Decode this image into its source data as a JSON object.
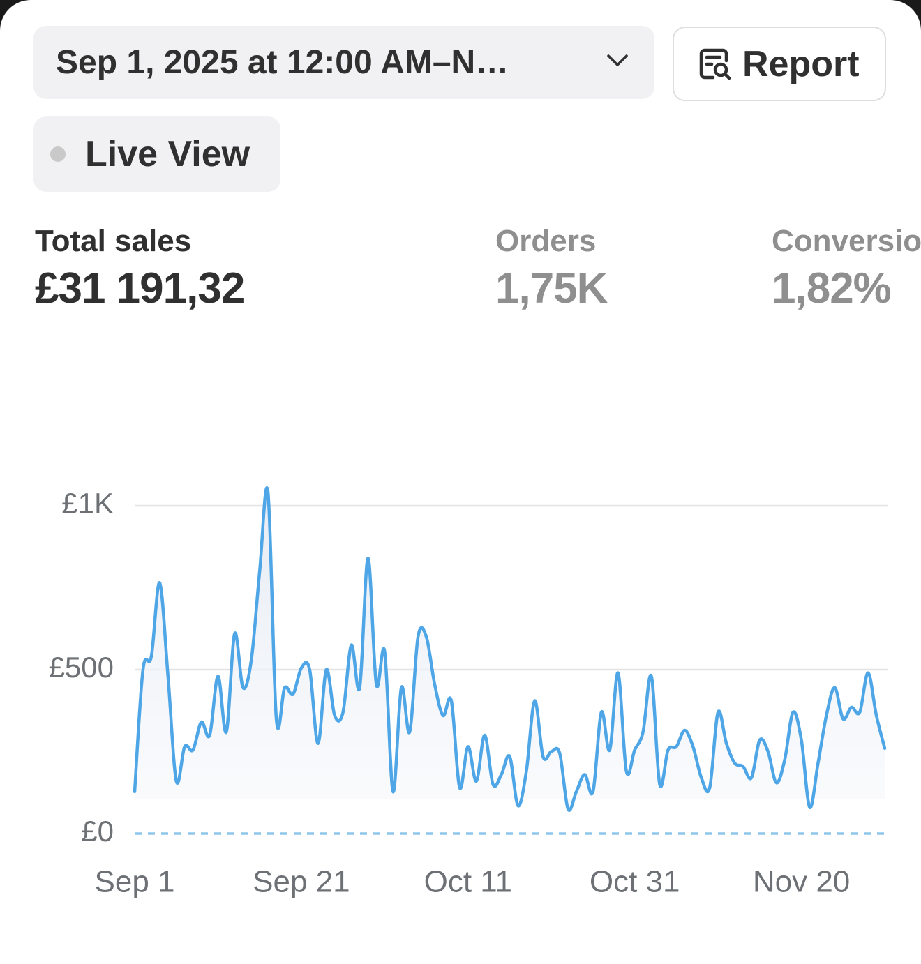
{
  "header": {
    "date_range": "Sep 1, 2025 at 12:00 AM–N…",
    "report_button": "Report",
    "live_view": "Live View"
  },
  "metrics": [
    {
      "label": "Total sales",
      "value": "£31 191,32"
    },
    {
      "label": "Orders",
      "value": "1,75K"
    },
    {
      "label": "Conversion rate",
      "value": "1,82%"
    }
  ],
  "chart_data": {
    "type": "line",
    "categories": [
      "Sep 1",
      null,
      null,
      null,
      null,
      null,
      null,
      null,
      null,
      null,
      null,
      null,
      null,
      null,
      null,
      null,
      null,
      null,
      null,
      null,
      "Sep 21",
      null,
      null,
      null,
      null,
      null,
      null,
      null,
      null,
      null,
      null,
      null,
      null,
      null,
      null,
      null,
      null,
      null,
      null,
      null,
      "Oct 11",
      null,
      null,
      null,
      null,
      null,
      null,
      null,
      null,
      null,
      null,
      null,
      null,
      null,
      null,
      null,
      null,
      null,
      null,
      null,
      "Oct 31",
      null,
      null,
      null,
      null,
      null,
      null,
      null,
      null,
      null,
      null,
      null,
      null,
      null,
      null,
      null,
      null,
      null,
      null,
      null,
      "Nov 20",
      null,
      null,
      null,
      null,
      null,
      null,
      null,
      null,
      null,
      null
    ],
    "values": [
      128,
      500,
      540,
      765,
      480,
      160,
      265,
      255,
      340,
      300,
      480,
      310,
      610,
      445,
      530,
      800,
      1040,
      350,
      445,
      425,
      505,
      500,
      275,
      500,
      360,
      370,
      575,
      445,
      840,
      455,
      555,
      128,
      445,
      310,
      600,
      600,
      455,
      360,
      405,
      140,
      265,
      160,
      300,
      150,
      180,
      235,
      85,
      190,
      405,
      235,
      250,
      245,
      75,
      128,
      180,
      128,
      370,
      255,
      490,
      190,
      255,
      310,
      480,
      150,
      255,
      265,
      315,
      265,
      170,
      140,
      370,
      275,
      215,
      205,
      170,
      285,
      250,
      155,
      225,
      370,
      285,
      80,
      215,
      360,
      445,
      350,
      385,
      370,
      490,
      360,
      260
    ],
    "color": "#4ea6e6",
    "ylim": [
      0,
      1000
    ],
    "yticks": [
      {
        "value": 0,
        "label": "£0"
      },
      {
        "value": 500,
        "label": "£500"
      },
      {
        "value": 1000,
        "label": "£1K"
      }
    ],
    "grid": true
  }
}
